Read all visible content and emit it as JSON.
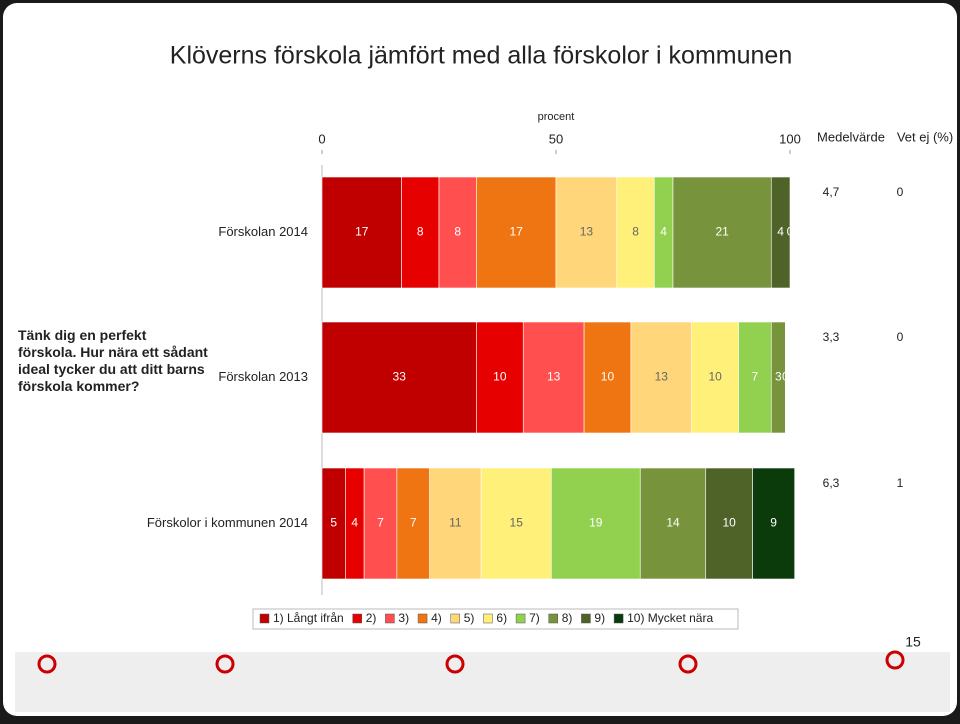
{
  "chart_data": {
    "type": "stacked-bar-horizontal",
    "title": "Klöverns förskola jämfört med alla förskolor i kommunen",
    "question": "Tänk dig en perfekt förskola. Hur nära ett sådant ideal tycker du att ditt barns förskola kommer?",
    "xlabel": "procent",
    "xlim": [
      0,
      100
    ],
    "xticks": [
      0,
      50,
      100
    ],
    "categories": [
      "Förskolan 2014",
      "Förskolan 2013",
      "Förskolor i kommunen 2014"
    ],
    "series": [
      {
        "name": "1) Långt ifrån",
        "color": "#c00000",
        "values": [
          17,
          33,
          5
        ]
      },
      {
        "name": "2)",
        "color": "#e60000",
        "values": [
          8,
          10,
          4
        ]
      },
      {
        "name": "3)",
        "color": "#ff4f4f",
        "values": [
          8,
          13,
          7
        ]
      },
      {
        "name": "4)",
        "color": "#ef7512",
        "values": [
          17,
          10,
          7
        ]
      },
      {
        "name": "5)",
        "color": "#ffd77a",
        "values": [
          13,
          13,
          11
        ]
      },
      {
        "name": "6)",
        "color": "#fff07a",
        "values": [
          8,
          10,
          15
        ]
      },
      {
        "name": "7)",
        "color": "#92d050",
        "values": [
          4,
          7,
          19
        ]
      },
      {
        "name": "8)",
        "color": "#77933c",
        "values": [
          21,
          3,
          14
        ]
      },
      {
        "name": "9)",
        "color": "#4f6228",
        "values": [
          4,
          0,
          10
        ]
      },
      {
        "name": "10) Mycket nära",
        "color": "#0b3b0b",
        "values": [
          0,
          null,
          9
        ]
      }
    ],
    "mean": {
      "header": "Medelvärde",
      "values": [
        4.7,
        3.3,
        6.3
      ],
      "value_labels": [
        "4,7",
        "3,3",
        "6,3"
      ]
    },
    "dont_know": {
      "header": "Vet ej (%)",
      "values": [
        0,
        0,
        1
      ]
    },
    "page_number": "15"
  }
}
